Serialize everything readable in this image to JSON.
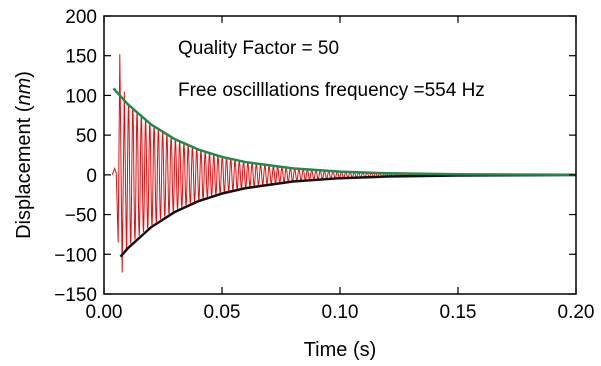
{
  "chart_data": {
    "type": "line",
    "title": "",
    "xlabel": "Time (s)",
    "ylabel": {
      "prefix": "Displacement (",
      "unit": "nm",
      "suffix": ")"
    },
    "xlim": [
      0.0,
      0.2
    ],
    "ylim": [
      -150,
      200
    ],
    "xticks": [
      0.0,
      0.05,
      0.1,
      0.15,
      0.2
    ],
    "xtick_labels": [
      "0.00",
      "0.05",
      "0.10",
      "0.15",
      "0.20"
    ],
    "yticks": [
      -150,
      -100,
      -50,
      0,
      50,
      100,
      150,
      200
    ],
    "ytick_labels": [
      "−150",
      "−100",
      "−50",
      "0",
      "50",
      "100",
      "150",
      "200"
    ],
    "grid": false,
    "legend": "none",
    "annotations": [
      "Quality Factor = 50",
      "Free oscilllations frequency =554 Hz"
    ],
    "quality_factor": 50,
    "frequency_hz": 554,
    "series": [
      {
        "color": "#dd1111",
        "kind": "damped-oscillation",
        "amplitude_nm": 112,
        "t_start": 0.004,
        "t_end": 0.2,
        "decay_time_s": 0.0287,
        "initial_transient": [
          [
            0.0035,
            0
          ],
          [
            0.0045,
            8
          ],
          [
            0.0052,
            2
          ],
          [
            0.006,
            -85
          ],
          [
            0.0067,
            152
          ],
          [
            0.0077,
            -123
          ],
          [
            0.0086,
            105
          ],
          [
            0.0095,
            -95
          ]
        ]
      },
      {
        "color": "#1f8a4c",
        "kind": "upper-envelope",
        "x": [
          0.004,
          0.01,
          0.02,
          0.03,
          0.04,
          0.05,
          0.06,
          0.08,
          0.1,
          0.12,
          0.15,
          0.2
        ],
        "y": [
          109.0,
          89.1,
          63.3,
          44.9,
          31.9,
          22.6,
          16.1,
          8.1,
          4.1,
          2.0,
          0.7,
          0.1
        ]
      },
      {
        "color": "#111111",
        "kind": "lower-envelope",
        "x": [
          0.007,
          0.01,
          0.02,
          0.03,
          0.04,
          0.05,
          0.06,
          0.08,
          0.1,
          0.12,
          0.15,
          0.2
        ],
        "y": [
          -103.0,
          -92.7,
          -65.8,
          -46.7,
          -33.1,
          -23.5,
          -16.7,
          -8.4,
          -4.2,
          -2.1,
          -0.8,
          -0.1
        ]
      }
    ]
  }
}
